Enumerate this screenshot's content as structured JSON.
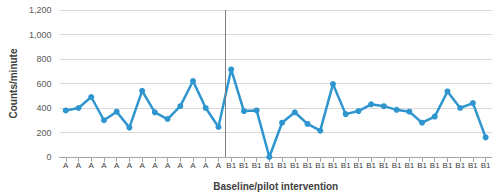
{
  "chart_data": {
    "type": "line",
    "xlabel": "Baseline/pilot intervention",
    "ylabel": "Counts/minute",
    "categories": [
      "A",
      "A",
      "A",
      "A",
      "A",
      "A",
      "A",
      "A",
      "A",
      "A",
      "A",
      "A",
      "A",
      "B1",
      "B1",
      "B1",
      "B1",
      "B1",
      "B1",
      "B1",
      "B1",
      "B1",
      "B1",
      "B1",
      "B1",
      "B1",
      "B1",
      "B1",
      "B1",
      "B1",
      "B1",
      "B1",
      "B1",
      "B1"
    ],
    "values": [
      380,
      400,
      490,
      300,
      370,
      240,
      540,
      365,
      310,
      415,
      620,
      400,
      245,
      715,
      375,
      380,
      0,
      280,
      365,
      270,
      215,
      595,
      350,
      375,
      430,
      415,
      385,
      370,
      280,
      330,
      535,
      400,
      440,
      160
    ],
    "color": "#2e95cf",
    "marker": "circle",
    "ylim": [
      0,
      1200
    ],
    "yticks": [
      0,
      200,
      400,
      600,
      800,
      1000,
      1200
    ],
    "grid": true
  }
}
